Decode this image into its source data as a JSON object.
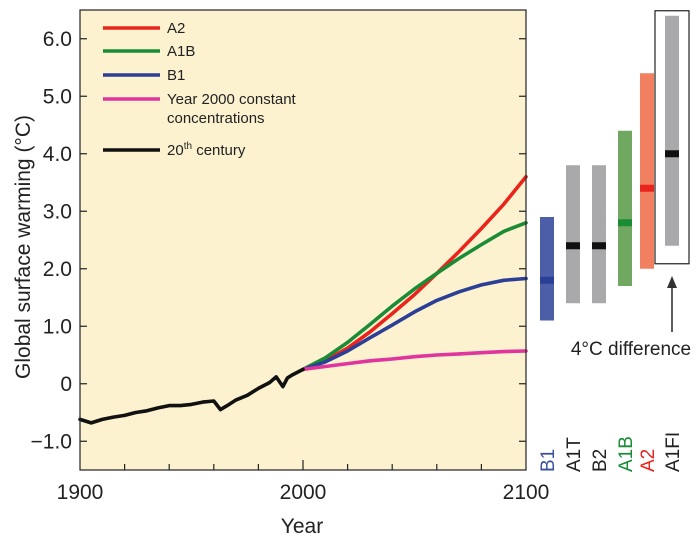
{
  "chart_data": {
    "type": "line",
    "title": "",
    "xlabel": "Year",
    "ylabel": "Global surface warming (°C)",
    "xlim": [
      1900,
      2100
    ],
    "ylim": [
      -1.5,
      6.5
    ],
    "x_ticks": [
      1900,
      2000,
      2100
    ],
    "x_tick_labels": [
      "1900",
      "2000",
      "2100"
    ],
    "y_ticks": [
      -1,
      0,
      1,
      2,
      3,
      4,
      5,
      6
    ],
    "y_tick_labels": [
      "−1.0",
      "0",
      "1.0",
      "2.0",
      "3.0",
      "4.0",
      "5.0",
      "6.0"
    ],
    "grid": false,
    "legend_position": "top-left",
    "background_color": "#fdf2d0",
    "series": [
      {
        "name": "A2",
        "color": "#e8241c",
        "x": [
          2000,
          2010,
          2020,
          2030,
          2040,
          2050,
          2060,
          2070,
          2080,
          2090,
          2100
        ],
        "y": [
          0.25,
          0.4,
          0.62,
          0.9,
          1.22,
          1.55,
          1.92,
          2.3,
          2.7,
          3.12,
          3.6
        ]
      },
      {
        "name": "A1B",
        "color": "#1a8c35",
        "x": [
          2000,
          2010,
          2020,
          2030,
          2040,
          2050,
          2060,
          2070,
          2080,
          2090,
          2100
        ],
        "y": [
          0.25,
          0.45,
          0.72,
          1.03,
          1.35,
          1.65,
          1.92,
          2.18,
          2.42,
          2.65,
          2.8
        ]
      },
      {
        "name": "B1",
        "color": "#2b3f96",
        "x": [
          2000,
          2010,
          2020,
          2030,
          2040,
          2050,
          2060,
          2070,
          2080,
          2090,
          2100
        ],
        "y": [
          0.25,
          0.38,
          0.57,
          0.8,
          1.02,
          1.25,
          1.45,
          1.6,
          1.72,
          1.8,
          1.83
        ]
      },
      {
        "name": "Year 2000 constant\nconcentrations",
        "color": "#e0359e",
        "x": [
          2000,
          2010,
          2020,
          2030,
          2040,
          2050,
          2060,
          2070,
          2080,
          2090,
          2100
        ],
        "y": [
          0.25,
          0.3,
          0.35,
          0.4,
          0.43,
          0.47,
          0.5,
          0.52,
          0.54,
          0.56,
          0.57
        ]
      },
      {
        "name": "20th century",
        "color": "#111111",
        "x": [
          1900,
          1905,
          1910,
          1915,
          1920,
          1925,
          1930,
          1935,
          1940,
          1945,
          1950,
          1955,
          1960,
          1963,
          1966,
          1970,
          1975,
          1980,
          1985,
          1988,
          1991,
          1993,
          1995,
          2000
        ],
        "y": [
          -0.62,
          -0.68,
          -0.62,
          -0.58,
          -0.55,
          -0.5,
          -0.47,
          -0.42,
          -0.38,
          -0.38,
          -0.36,
          -0.32,
          -0.3,
          -0.45,
          -0.38,
          -0.28,
          -0.2,
          -0.08,
          0.02,
          0.12,
          -0.05,
          0.1,
          0.15,
          0.25
        ]
      }
    ],
    "legend": [
      {
        "line1": "A2",
        "line2": "",
        "color": "#e8241c"
      },
      {
        "line1": "A1B",
        "line2": "",
        "color": "#1a8c35"
      },
      {
        "line1": "B1",
        "line2": "",
        "color": "#2b3f96"
      },
      {
        "line1": "Year 2000 constant",
        "line2": "concentrations",
        "color": "#e0359e"
      },
      {
        "line1": "20",
        "sup": "th",
        "line1_rest": " century",
        "line2": "",
        "color": "#111111"
      }
    ],
    "scenario_ranges": [
      {
        "label": "B1",
        "low": 1.1,
        "high": 2.9,
        "best": 1.8,
        "bar_color": "#4d5ea8",
        "best_color": "#2b3f96",
        "label_color": "#3a4fa0"
      },
      {
        "label": "A1T",
        "low": 1.4,
        "high": 3.8,
        "best": 2.4,
        "bar_color": "#a9a9ab",
        "best_color": "#111111",
        "label_color": "#222222"
      },
      {
        "label": "B2",
        "low": 1.4,
        "high": 3.8,
        "best": 2.4,
        "bar_color": "#a9a9ab",
        "best_color": "#111111",
        "label_color": "#222222"
      },
      {
        "label": "A1B",
        "low": 1.7,
        "high": 4.4,
        "best": 2.8,
        "bar_color": "#71a861",
        "best_color": "#1a8c35",
        "label_color": "#1a8c35"
      },
      {
        "label": "A2",
        "low": 2.0,
        "high": 5.4,
        "best": 3.4,
        "bar_color": "#f08060",
        "best_color": "#e8241c",
        "label_color": "#e8241c"
      },
      {
        "label": "A1FI",
        "low": 2.4,
        "high": 6.4,
        "best": 4.0,
        "bar_color": "#a9a9ab",
        "best_color": "#111111",
        "label_color": "#222222"
      }
    ],
    "annotation": "4°C difference"
  }
}
